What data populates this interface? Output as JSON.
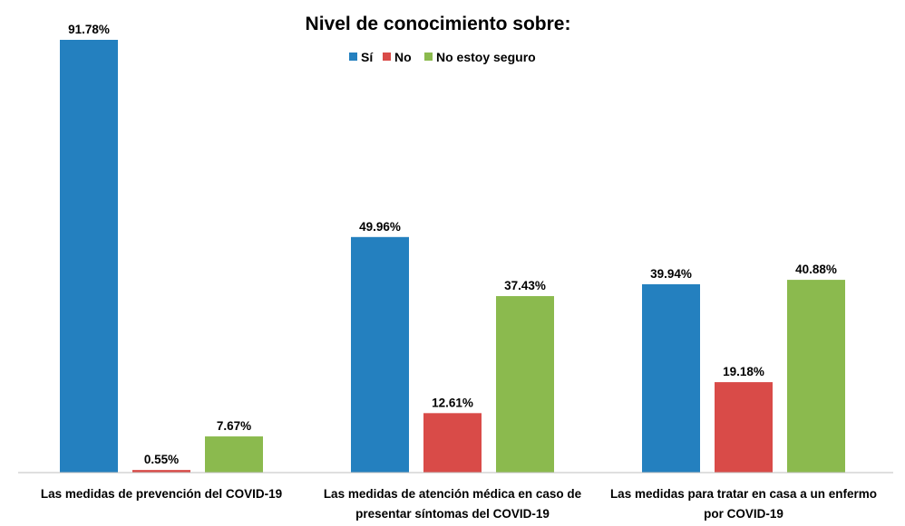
{
  "chart_data": {
    "type": "bar",
    "title": "Nivel de conocimiento sobre:",
    "legend_position": "top",
    "grid": false,
    "ylim": [
      0,
      100
    ],
    "categories": [
      [
        "Las medidas de prevención del COVID-19"
      ],
      [
        "Las medidas de atención médica en caso de",
        "presentar síntomas del COVID-19"
      ],
      [
        "Las medidas para tratar en casa a un enfermo",
        "por COVID-19"
      ]
    ],
    "series": [
      {
        "name": "Sí",
        "color": "#2480BF",
        "values": [
          91.78,
          49.96,
          39.94
        ],
        "labels": [
          "91.78%",
          "49.96%",
          "39.94%"
        ]
      },
      {
        "name": "No",
        "color": "#D94B48",
        "values": [
          0.55,
          12.61,
          19.18
        ],
        "labels": [
          "0.55%",
          "12.61%",
          "19.18%"
        ]
      },
      {
        "name": "No estoy seguro",
        "color": "#8BBA4E",
        "values": [
          7.67,
          37.43,
          40.88
        ],
        "labels": [
          "7.67%",
          "37.43%",
          "40.88%"
        ]
      }
    ]
  }
}
